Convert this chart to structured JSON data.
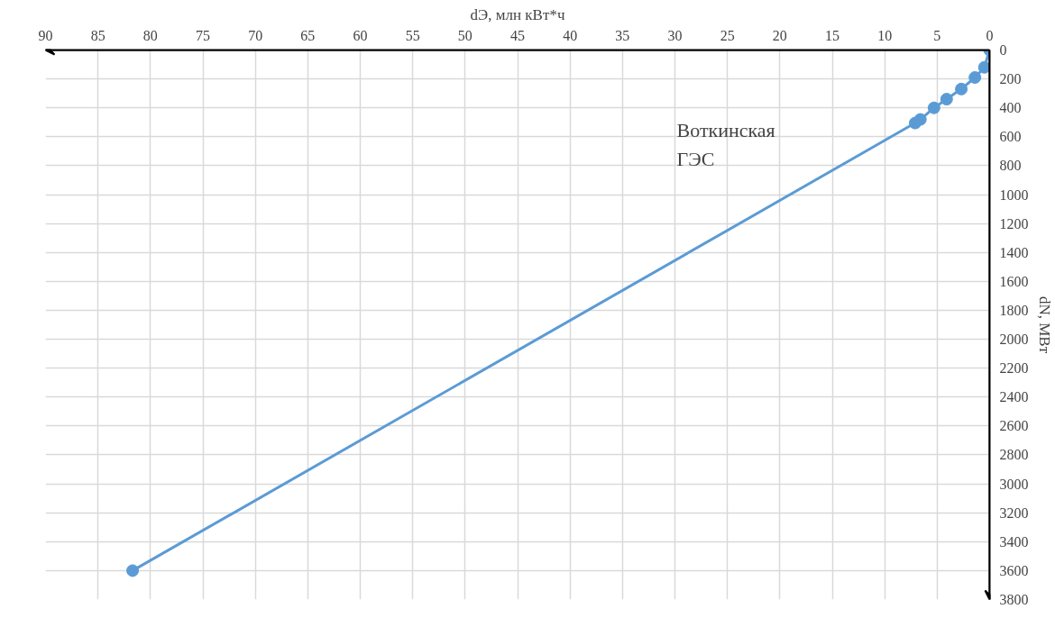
{
  "chart_data": {
    "type": "line",
    "xlabel": "dЭ, млн кВт*ч",
    "ylabel": "dN, МВт",
    "x": [
      0,
      0.5,
      1.4,
      2.7,
      4.1,
      5.3,
      6.6,
      7.1,
      81.7
    ],
    "series": [
      {
        "color": "#5b9bd5",
        "values": [
          0,
          120,
          190,
          270,
          340,
          400,
          480,
          505,
          3600
        ]
      }
    ],
    "xlim": [
      90,
      0
    ],
    "ylim": [
      3800,
      0
    ],
    "xticks": [
      90,
      85,
      80,
      75,
      70,
      65,
      60,
      55,
      50,
      45,
      40,
      35,
      30,
      25,
      20,
      15,
      10,
      5,
      0
    ],
    "yticks": [
      0,
      200,
      400,
      600,
      800,
      1000,
      1200,
      1400,
      1600,
      1800,
      2000,
      2200,
      2400,
      2600,
      2800,
      3000,
      3200,
      3400,
      3600,
      3800
    ],
    "grid": true,
    "marker": "circle",
    "line_style": "solid",
    "annotations": [
      "Воткинская\nГЭС"
    ]
  }
}
